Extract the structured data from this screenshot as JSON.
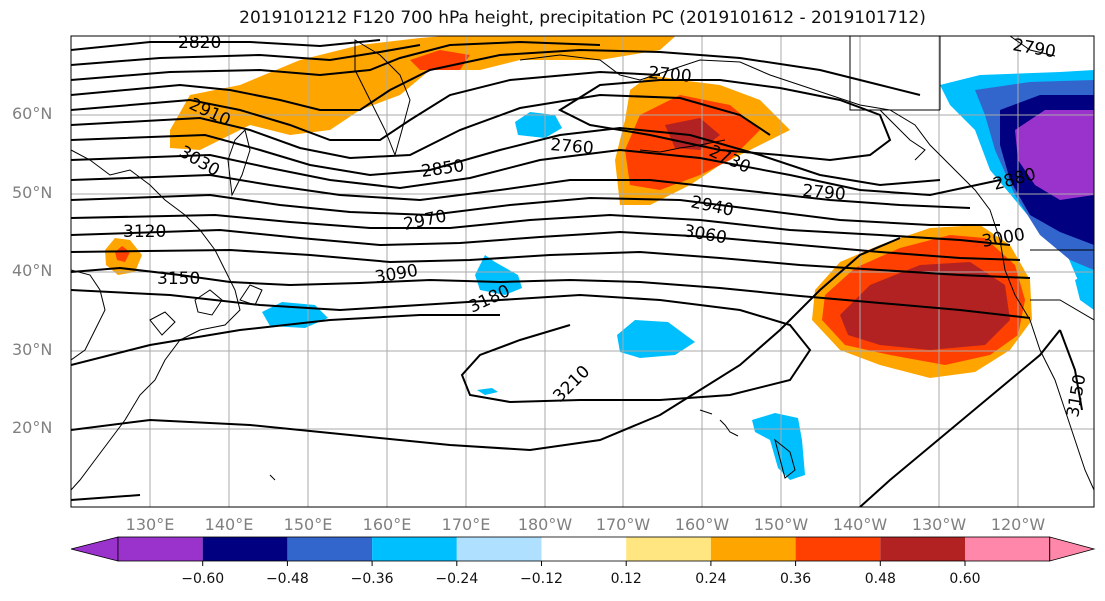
{
  "title": "2019101212 F120 700 hPa height, precipitation PC (2019101612 - 2019101712)",
  "latitude_labels": [
    "60°N",
    "50°N",
    "40°N",
    "30°N",
    "20°N"
  ],
  "longitude_labels": [
    "130°E",
    "140°E",
    "150°E",
    "160°E",
    "170°E",
    "180°W",
    "170°W",
    "160°W",
    "150°W",
    "140°W",
    "130°W",
    "120°W"
  ],
  "contour_labels": [
    "2820",
    "2910",
    "3030",
    "3120",
    "3150",
    "2850",
    "2970",
    "3090",
    "3180",
    "3210",
    "2760",
    "2700",
    "2730",
    "2790",
    "2940",
    "3060",
    "3000",
    "2880",
    "2790",
    "3150"
  ],
  "colorbar": {
    "tick_labels": [
      "−0.60",
      "−0.48",
      "−0.36",
      "−0.24",
      "−0.12",
      "0.12",
      "0.24",
      "0.36",
      "0.48",
      "0.60"
    ],
    "colors": [
      "#9933cc",
      "#000080",
      "#3366cc",
      "#00bfff",
      "#b0e0ff",
      "#ffffff",
      "#ffe680",
      "#ffa500",
      "#ff4000",
      "#b22222",
      "#ff88aa"
    ]
  },
  "colors": {
    "positive_1": "#ffa500",
    "positive_2": "#ff4000",
    "positive_3": "#b22222",
    "negative_1": "#00bfff",
    "negative_2": "#3366cc",
    "negative_3": "#000080",
    "negative_4": "#9933cc",
    "contour": "#000000",
    "grid": "#aaaaaa",
    "label_gray": "#808080"
  }
}
